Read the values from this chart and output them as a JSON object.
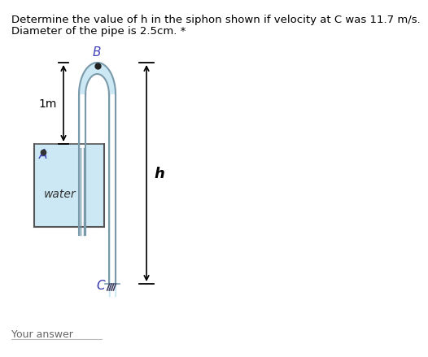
{
  "title_line1": "Determine the value of h in the siphon shown if velocity at C was 11.7 m/s.",
  "title_line2": "Diameter of the pipe is 2.5cm. *",
  "title_color": "#000000",
  "title_fontsize": 9.5,
  "label_1m": "1m",
  "label_A": "A",
  "label_B": "B",
  "label_C": "C",
  "label_h": "h",
  "label_water": "water",
  "label_your_answer": "Your answer",
  "bg_color": "#ffffff",
  "water_color": "#cce8f4",
  "pipe_fill_color": "#cde8f5",
  "pipe_edge_color": "#7a9aaa",
  "tank_edge_color": "#555555",
  "arrow_color": "#000000",
  "label_B_color": "#4444bb",
  "label_A_color": "#4444bb",
  "label_C_color": "#3333aa"
}
